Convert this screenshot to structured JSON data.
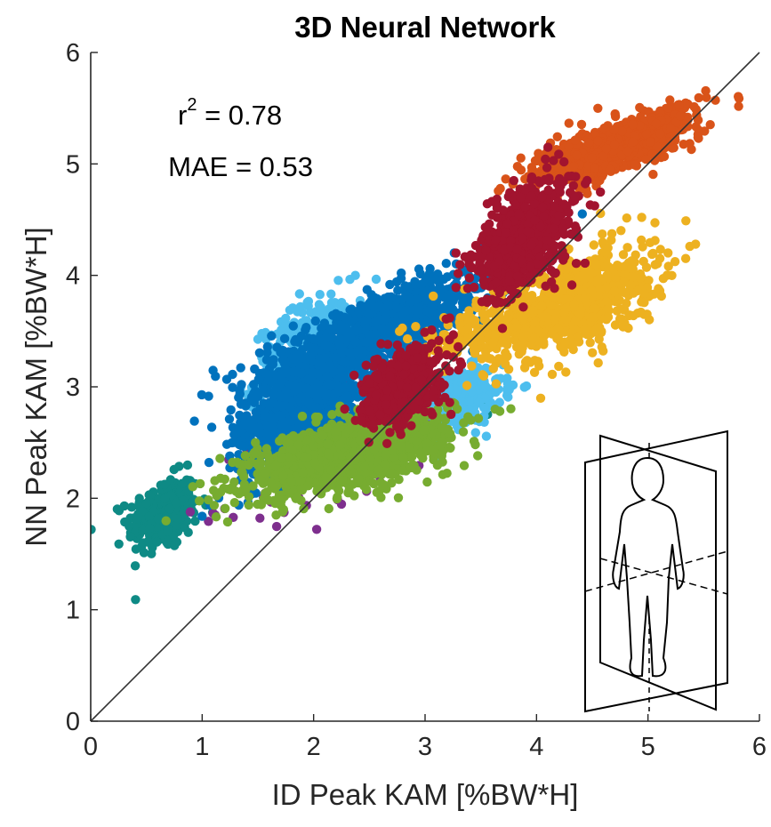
{
  "chart_data": {
    "type": "scatter",
    "title": "3D Neural Network",
    "xlabel": "ID Peak KAM [%BW*H]",
    "ylabel": "NN Peak KAM [%BW*H]",
    "xlim": [
      0,
      6
    ],
    "ylim": [
      0,
      6
    ],
    "xticks": [
      "0",
      "1",
      "2",
      "3",
      "4",
      "5",
      "6"
    ],
    "yticks": [
      "0",
      "1",
      "2",
      "3",
      "4",
      "5",
      "6"
    ],
    "grid": false,
    "legend": "none",
    "reference_line": {
      "x": [
        0,
        6
      ],
      "y": [
        0,
        6
      ],
      "color": "#333333"
    },
    "annotations": {
      "r2_prefix": "r",
      "r2_exp": "2",
      "r2_value": " = 0.78",
      "mae": "MAE = 0.53"
    },
    "inset_icon": "human-body-planes-icon",
    "series": [
      {
        "color": "#0e8a85",
        "clusters": [
          {
            "cx": 0.65,
            "cy": 1.85,
            "sx": 0.16,
            "sy": 0.17,
            "rho": 0.3,
            "n": 260
          },
          {
            "cx": 3.4,
            "cy": 2.85,
            "sx": 0.15,
            "sy": 0.12,
            "rho": 0.2,
            "n": 25
          }
        ]
      },
      {
        "color": "#4dbeee",
        "clusters": [
          {
            "cx": 1.9,
            "cy": 3.3,
            "sx": 0.22,
            "sy": 0.25,
            "rho": 0.5,
            "n": 300
          },
          {
            "cx": 3.25,
            "cy": 2.9,
            "sx": 0.22,
            "sy": 0.14,
            "rho": 0.3,
            "n": 380
          }
        ]
      },
      {
        "color": "#7e2f8e",
        "clusters": [
          {
            "cx": 2.3,
            "cy": 2.55,
            "sx": 0.45,
            "sy": 0.4,
            "rho": 0.6,
            "n": 160
          }
        ]
      },
      {
        "color": "#0072bd",
        "clusters": [
          {
            "cx": 1.9,
            "cy": 2.8,
            "sx": 0.28,
            "sy": 0.28,
            "rho": 0.5,
            "n": 1100
          },
          {
            "cx": 2.6,
            "cy": 3.5,
            "sx": 0.5,
            "sy": 0.25,
            "rho": 0.8,
            "n": 1000
          }
        ]
      },
      {
        "color": "#77ac30",
        "clusters": [
          {
            "cx": 2.3,
            "cy": 2.4,
            "sx": 0.45,
            "sy": 0.18,
            "rho": 0.6,
            "n": 1300
          }
        ]
      },
      {
        "color": "#edb120",
        "clusters": [
          {
            "cx": 4.3,
            "cy": 3.75,
            "sx": 0.38,
            "sy": 0.25,
            "rho": 0.5,
            "n": 750
          },
          {
            "cx": 3.4,
            "cy": 3.45,
            "sx": 0.3,
            "sy": 0.1,
            "rho": 0.3,
            "n": 100
          }
        ]
      },
      {
        "color": "#d95319",
        "clusters": [
          {
            "cx": 4.7,
            "cy": 5.15,
            "sx": 0.35,
            "sy": 0.16,
            "rho": 0.75,
            "n": 950
          }
        ]
      },
      {
        "color": "#a2142f",
        "clusters": [
          {
            "cx": 2.8,
            "cy": 3.0,
            "sx": 0.16,
            "sy": 0.16,
            "rho": 0.4,
            "n": 650
          },
          {
            "cx": 3.9,
            "cy": 4.35,
            "sx": 0.22,
            "sy": 0.25,
            "rho": 0.5,
            "n": 750
          }
        ]
      }
    ]
  }
}
